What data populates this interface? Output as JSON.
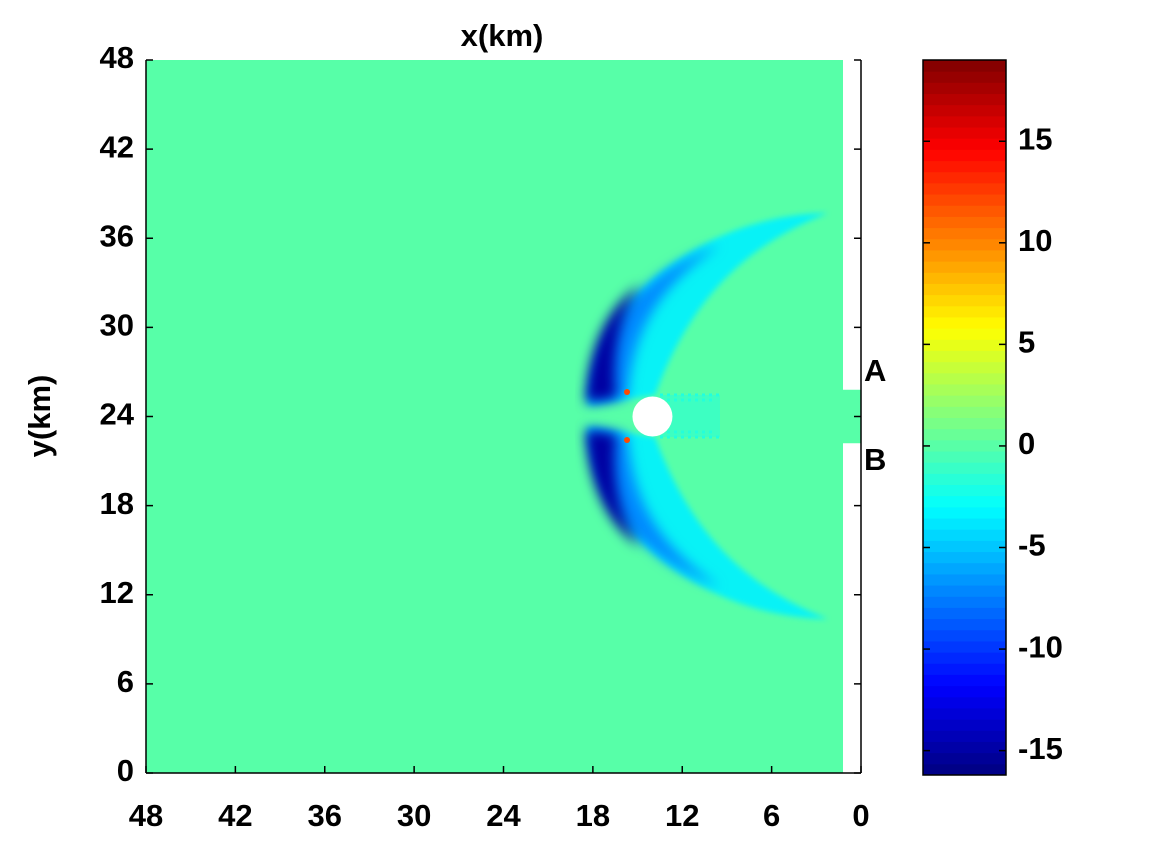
{
  "chart_data": {
    "type": "heatmap",
    "xlabel": "x(km)",
    "ylabel": "y(km)",
    "xlim": [
      48,
      0
    ],
    "xticks": [
      48,
      42,
      36,
      30,
      24,
      18,
      12,
      6,
      0
    ],
    "ylim": [
      0,
      48
    ],
    "yticks": [
      0,
      6,
      12,
      18,
      24,
      30,
      36,
      42,
      48
    ],
    "colormap": "jet",
    "colorbar": {
      "clim": [
        -16.2,
        19
      ],
      "ticks": [
        -15,
        -10,
        -5,
        0,
        5,
        10,
        15
      ]
    },
    "annotations": [
      "A",
      "B"
    ]
  }
}
